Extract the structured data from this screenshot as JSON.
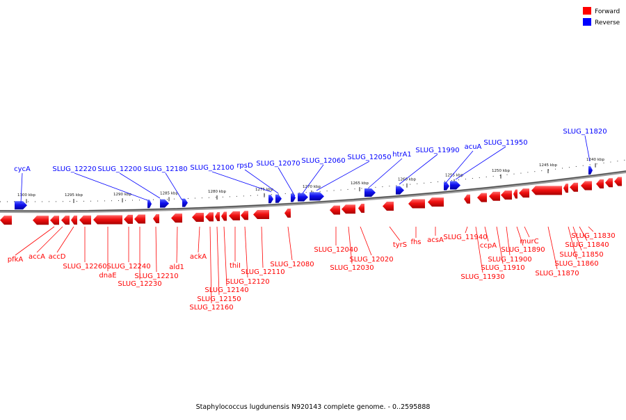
{
  "legend": {
    "forward": {
      "label": "Forward",
      "color": "#ff0000"
    },
    "reverse": {
      "label": "Reverse",
      "color": "#0000ff"
    }
  },
  "caption": "Staphylococcus lugdunensis N920143 complete genome. - 0..2595888",
  "ruler_ticks": [
    "1300 kbp",
    "1295 kbp",
    "1290 kbp",
    "1285 kbp",
    "1280 kbp",
    "1275 kbp",
    "1270 kbp",
    "1265 kbp",
    "1260 kbp",
    "1255 kbp",
    "1250 kbp",
    "1245 kbp",
    "1240 kbp"
  ],
  "reverse_labels": [
    "cycA",
    "SLUG_12220",
    "SLUG_12200",
    "SLUG_12180",
    "SLUG_12100",
    "rpsD",
    "SLUG_12070",
    "SLUG_12060",
    "SLUG_12050",
    "htrA1",
    "SLUG_11990",
    "acuA",
    "SLUG_11950",
    "SLUG_11820"
  ],
  "forward_labels": [
    "pfkA",
    "accA",
    "accD",
    "SLUG_12260",
    "dnaE",
    "SLUG_12240",
    "SLUG_12230",
    "SLUG_12210",
    "ald1",
    "ackA",
    "SLUG_12160",
    "SLUG_12150",
    "SLUG_12140",
    "thiI",
    "SLUG_12120",
    "SLUG_12110",
    "SLUG_12080",
    "SLUG_12040",
    "SLUG_12030",
    "SLUG_12020",
    "tyrS",
    "fhs",
    "acsA",
    "SLUG_11940",
    "SLUG_11930",
    "ccpA",
    "SLUG_11910",
    "SLUG_11900",
    "SLUG_11890",
    "murC",
    "SLUG_11870",
    "SLUG_11860",
    "SLUG_11850",
    "SLUG_11840",
    "SLUG_11830"
  ]
}
